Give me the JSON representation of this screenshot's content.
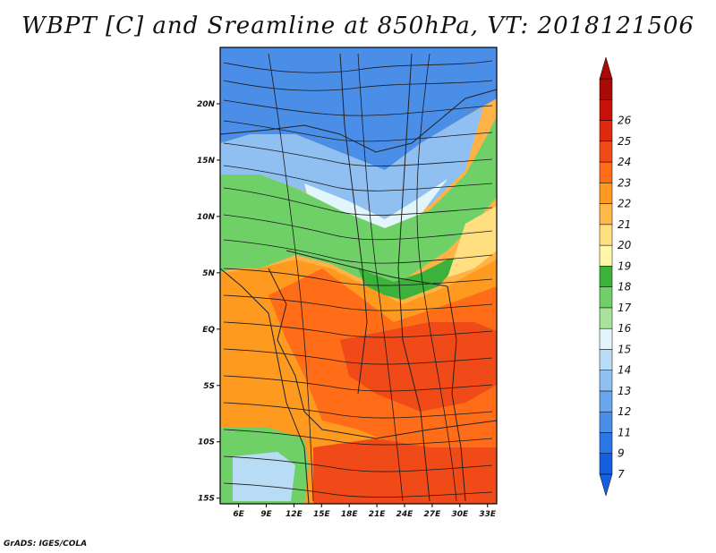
{
  "title": "WBPT [C] and Sreamline at 850hPa, VT: 2018121506",
  "footer": "GrADS: IGES/COLA",
  "map": {
    "lat_labels": [
      "20N",
      "15N",
      "10N",
      "5N",
      "EQ",
      "5S",
      "10S",
      "15S"
    ],
    "lon_labels": [
      "6E",
      "9E",
      "12E",
      "15E",
      "18E",
      "21E",
      "24E",
      "27E",
      "30E",
      "33E"
    ],
    "lat_values": [
      20,
      15,
      10,
      5,
      0,
      -5,
      -10,
      -15
    ],
    "lon_values": [
      6,
      9,
      12,
      15,
      18,
      21,
      24,
      27,
      30,
      33
    ],
    "lat_range": [
      -15.5,
      25
    ],
    "lon_range": [
      4,
      34
    ]
  },
  "colorbar": {
    "labels": [
      "7",
      "9",
      "11",
      "12",
      "13",
      "14",
      "15",
      "16",
      "17",
      "18",
      "19",
      "20",
      "21",
      "22",
      "23",
      "24",
      "25",
      "26"
    ],
    "colors": [
      "#1560e0",
      "#2a78e8",
      "#4a8ee8",
      "#6aa6ee",
      "#90c0f2",
      "#b8dcf6",
      "#e2f5fa",
      "#a9e39a",
      "#6fd068",
      "#3bb23a",
      "#fff7a8",
      "#ffdf80",
      "#ffb84a",
      "#ff9a20",
      "#ff6d18",
      "#f04a18",
      "#e02a10",
      "#c81208",
      "#a80a05"
    ]
  }
}
